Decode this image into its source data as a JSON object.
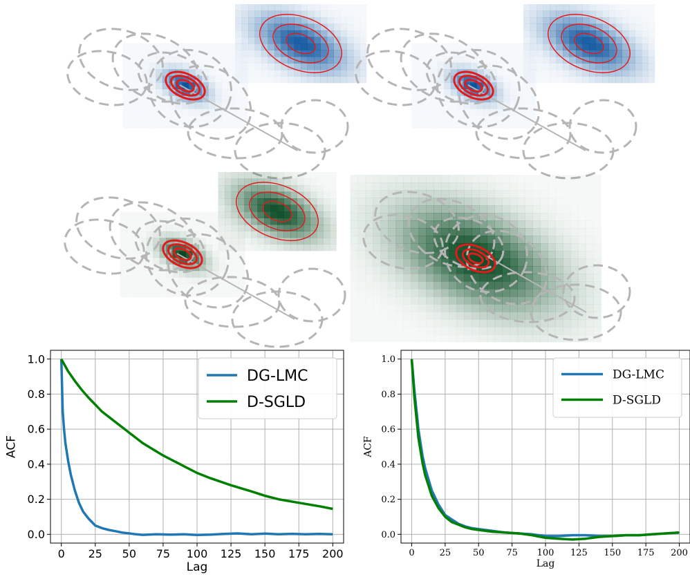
{
  "colors": {
    "blue_line": "#1f77b4",
    "green_line": "#008000",
    "red_contour": "#e31a1c",
    "dashed": "#b5b5b5",
    "grid": "#b0b0b0"
  },
  "density_panels": [
    {
      "name": "density-panel-top-left",
      "colormap": "blues"
    },
    {
      "name": "density-panel-top-right",
      "colormap": "blues"
    },
    {
      "name": "density-panel-middle-left",
      "colormap": "greens"
    },
    {
      "name": "density-panel-middle-right",
      "colormap": "greens"
    }
  ],
  "chart_data": [
    {
      "type": "line",
      "name": "acf-left",
      "xlabel": "Lag",
      "ylabel": "ACF",
      "xlim": [
        -8,
        208
      ],
      "ylim": [
        -0.05,
        1.05
      ],
      "xticks": [
        0,
        25,
        50,
        75,
        100,
        125,
        150,
        175,
        200
      ],
      "yticks": [
        "0.0",
        "0.2",
        "0.4",
        "0.6",
        "0.8",
        "1.0"
      ],
      "grid": true,
      "legend_position": "top-right",
      "series": [
        {
          "name": "DG-LMC",
          "color": "#1f77b4",
          "x": [
            0,
            1,
            2,
            3,
            5,
            7,
            10,
            13,
            16,
            20,
            25,
            30,
            35,
            40,
            45,
            50,
            55,
            60,
            70,
            80,
            90,
            100,
            110,
            120,
            130,
            140,
            150,
            160,
            170,
            180,
            190,
            200
          ],
          "y": [
            1.0,
            0.7,
            0.6,
            0.52,
            0.42,
            0.34,
            0.25,
            0.18,
            0.13,
            0.09,
            0.05,
            0.035,
            0.025,
            0.018,
            0.01,
            0.005,
            0.0,
            -0.003,
            0.0,
            -0.002,
            0.0,
            -0.004,
            -0.002,
            0.002,
            0.005,
            0.0,
            0.004,
            0.0,
            0.003,
            0.0,
            0.002,
            0.0
          ]
        },
        {
          "name": "D-SGLD",
          "color": "#008000",
          "x": [
            0,
            5,
            10,
            15,
            20,
            25,
            30,
            40,
            50,
            60,
            75,
            90,
            100,
            110,
            125,
            140,
            150,
            160,
            175,
            190,
            200
          ],
          "y": [
            1.0,
            0.93,
            0.875,
            0.825,
            0.78,
            0.74,
            0.7,
            0.64,
            0.58,
            0.52,
            0.45,
            0.39,
            0.35,
            0.32,
            0.28,
            0.245,
            0.22,
            0.2,
            0.18,
            0.16,
            0.145
          ]
        }
      ]
    },
    {
      "type": "line",
      "name": "acf-right",
      "xlabel": "Lag",
      "ylabel": "ACF",
      "xlim": [
        -8,
        208
      ],
      "ylim": [
        -0.05,
        1.05
      ],
      "xticks": [
        0,
        25,
        50,
        75,
        100,
        125,
        150,
        175,
        200
      ],
      "yticks": [
        "0.0",
        "0.2",
        "0.4",
        "0.6",
        "0.8",
        "1.0"
      ],
      "grid": true,
      "legend_position": "top-right",
      "series": [
        {
          "name": "DG-LMC",
          "color": "#1f77b4",
          "x": [
            0,
            2,
            5,
            8,
            10,
            15,
            20,
            25,
            30,
            35,
            40,
            45,
            50,
            60,
            70,
            80,
            90,
            100,
            110,
            120,
            130,
            140,
            150,
            160,
            170,
            180,
            190,
            200
          ],
          "y": [
            1.0,
            0.82,
            0.6,
            0.45,
            0.38,
            0.25,
            0.17,
            0.11,
            0.085,
            0.06,
            0.045,
            0.035,
            0.03,
            0.02,
            0.01,
            0.005,
            0.0,
            -0.01,
            -0.01,
            -0.005,
            -0.005,
            -0.01,
            -0.01,
            -0.005,
            -0.005,
            0.0,
            0.005,
            0.01
          ]
        },
        {
          "name": "D-SGLD",
          "color": "#008000",
          "x": [
            0,
            2,
            5,
            8,
            10,
            15,
            20,
            25,
            30,
            35,
            40,
            45,
            50,
            60,
            70,
            80,
            90,
            100,
            110,
            120,
            130,
            140,
            150,
            160,
            170,
            180,
            190,
            200
          ],
          "y": [
            1.0,
            0.78,
            0.55,
            0.41,
            0.34,
            0.22,
            0.15,
            0.1,
            0.07,
            0.055,
            0.04,
            0.03,
            0.025,
            0.015,
            0.01,
            0.005,
            -0.005,
            -0.02,
            -0.025,
            -0.03,
            -0.025,
            -0.015,
            -0.01,
            -0.005,
            -0.005,
            0.0,
            0.005,
            0.01
          ]
        }
      ]
    }
  ]
}
